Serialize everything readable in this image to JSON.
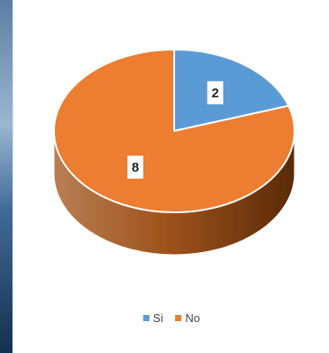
{
  "chart_data": {
    "type": "pie",
    "three_d": true,
    "title": "",
    "categories": [
      "Si",
      "No"
    ],
    "values": [
      2,
      8
    ],
    "data_labels": [
      "2",
      "8"
    ],
    "legend_position": "bottom",
    "colors": [
      "#5b9bd5",
      "#ed7d31"
    ],
    "side_colors": [
      "#2e5f8f",
      "#a0541c"
    ]
  }
}
